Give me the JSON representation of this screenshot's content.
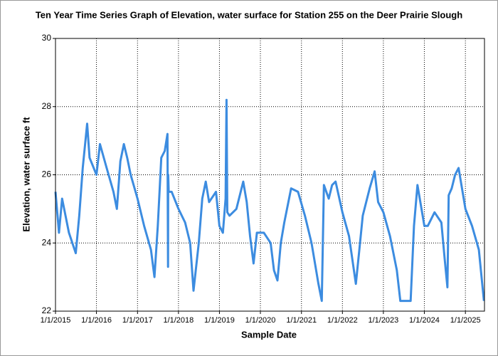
{
  "chart_data": {
    "type": "line",
    "title": "Ten Year Time Series Graph of Elevation, water surface for Station 255 on the Deer Prairie Slough",
    "x_label": "Sample Date",
    "y_label": "Elevation, water surface ft",
    "color": "#3c8ce0",
    "grid": true,
    "xlim": [
      "2015-01-01",
      "2025-06-20"
    ],
    "xticks": [
      {
        "value": "2015-01-01",
        "label": "1/1/2015"
      },
      {
        "value": "2016-01-01",
        "label": "1/1/2016"
      },
      {
        "value": "2017-01-01",
        "label": "1/1/2017"
      },
      {
        "value": "2018-01-01",
        "label": "1/1/2018"
      },
      {
        "value": "2019-01-01",
        "label": "1/1/2019"
      },
      {
        "value": "2020-01-01",
        "label": "1/1/2020"
      },
      {
        "value": "2021-01-01",
        "label": "1/1/2021"
      },
      {
        "value": "2022-01-01",
        "label": "1/1/2022"
      },
      {
        "value": "2023-01-01",
        "label": "1/1/2023"
      },
      {
        "value": "2024-01-01",
        "label": "1/1/2024"
      },
      {
        "value": "2025-01-01",
        "label": "1/1/2025"
      }
    ],
    "ylim": [
      22,
      30
    ],
    "yticks": [
      22,
      24,
      26,
      28,
      30
    ],
    "x": [
      "2015-01-01",
      "2015-02-01",
      "2015-03-01",
      "2015-05-01",
      "2015-07-01",
      "2015-08-01",
      "2015-09-01",
      "2015-10-10",
      "2015-11-01",
      "2016-01-01",
      "2016-02-01",
      "2016-04-01",
      "2016-06-01",
      "2016-07-01",
      "2016-08-01",
      "2016-09-01",
      "2016-10-01",
      "2016-11-01",
      "2017-01-01",
      "2017-03-01",
      "2017-05-01",
      "2017-06-01",
      "2017-07-01",
      "2017-08-01",
      "2017-09-01",
      "2017-09-25",
      "2017-09-30",
      "2017-10-01",
      "2017-10-03",
      "2017-10-06",
      "2017-11-01",
      "2018-01-01",
      "2018-03-01",
      "2018-04-15",
      "2018-05-15",
      "2018-07-01",
      "2018-08-01",
      "2018-09-01",
      "2018-10-01",
      "2018-12-01",
      "2019-01-01",
      "2019-02-01",
      "2019-02-25",
      "2019-03-05",
      "2019-03-12",
      "2019-04-01",
      "2019-06-01",
      "2019-08-01",
      "2019-09-01",
      "2019-10-01",
      "2019-11-01",
      "2019-12-01",
      "2020-02-01",
      "2020-04-01",
      "2020-05-01",
      "2020-06-01",
      "2020-07-01",
      "2020-08-01",
      "2020-10-01",
      "2020-12-01",
      "2021-02-01",
      "2021-04-01",
      "2021-06-01",
      "2021-07-01",
      "2021-07-20",
      "2021-09-01",
      "2021-10-01",
      "2021-11-01",
      "2022-01-01",
      "2022-03-01",
      "2022-05-01",
      "2022-06-01",
      "2022-07-01",
      "2022-09-01",
      "2022-10-15",
      "2022-11-15",
      "2023-01-01",
      "2023-03-01",
      "2023-05-01",
      "2023-06-01",
      "2023-09-01",
      "2023-10-01",
      "2023-11-01",
      "2024-01-01",
      "2024-02-01",
      "2024-04-01",
      "2024-06-01",
      "2024-07-01",
      "2024-07-25",
      "2024-08-05",
      "2024-09-01",
      "2024-10-01",
      "2024-11-01",
      "2025-01-01",
      "2025-03-01",
      "2025-05-01",
      "2025-06-15"
    ],
    "values": [
      25.5,
      24.3,
      25.3,
      24.3,
      23.7,
      24.8,
      26.2,
      27.5,
      26.5,
      26.0,
      26.9,
      26.2,
      25.5,
      25.0,
      26.4,
      26.9,
      26.5,
      26.0,
      25.3,
      24.5,
      23.8,
      23.0,
      24.5,
      26.5,
      26.7,
      27.2,
      23.3,
      26.0,
      25.8,
      25.5,
      25.5,
      25.0,
      24.6,
      24.0,
      22.6,
      24.0,
      25.3,
      25.8,
      25.2,
      25.5,
      24.5,
      24.3,
      25.3,
      28.2,
      24.9,
      24.8,
      25.0,
      25.8,
      25.2,
      24.2,
      23.4,
      24.3,
      24.3,
      24.0,
      23.2,
      22.9,
      24.0,
      24.6,
      25.6,
      25.5,
      24.8,
      24.0,
      22.8,
      22.3,
      25.7,
      25.3,
      25.7,
      25.8,
      24.9,
      24.2,
      22.8,
      23.8,
      24.8,
      25.6,
      26.1,
      25.2,
      24.9,
      24.2,
      23.2,
      22.3,
      22.3,
      24.5,
      25.7,
      24.5,
      24.5,
      24.9,
      24.6,
      23.5,
      22.7,
      25.4,
      25.6,
      26.0,
      26.2,
      25.0,
      24.5,
      23.8,
      22.3
    ]
  }
}
